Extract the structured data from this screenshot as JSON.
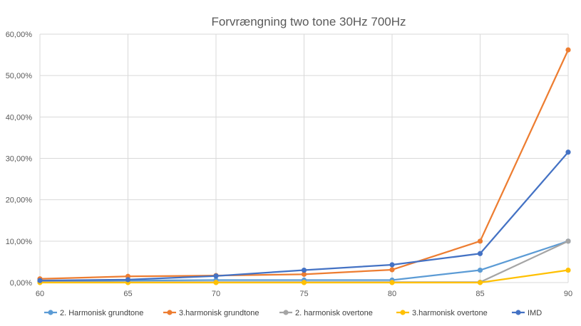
{
  "chart_data": {
    "type": "line",
    "title": "Forvrængning two tone 30Hz 700Hz",
    "xlabel": "",
    "ylabel": "",
    "x": [
      60,
      65,
      70,
      75,
      80,
      85,
      90
    ],
    "xlim": [
      60,
      90
    ],
    "ylim": [
      0,
      60
    ],
    "y_ticks": [
      "0,00%",
      "10,00%",
      "20,00%",
      "30,00%",
      "40,00%",
      "50,00%",
      "60,00%"
    ],
    "x_ticks": [
      "60",
      "65",
      "70",
      "75",
      "80",
      "85",
      "90"
    ],
    "grid": true,
    "legend_position": "bottom",
    "series": [
      {
        "name": "2. Harmonisk grundtone",
        "color": "#5B9BD5",
        "values": [
          0.3,
          0.5,
          0.6,
          0.6,
          0.6,
          3.0,
          10.0
        ]
      },
      {
        "name": "3.harmonisk grundtone",
        "color": "#ED7D31",
        "values": [
          0.9,
          1.5,
          1.7,
          2.0,
          3.1,
          10.0,
          56.2
        ]
      },
      {
        "name": "2. harmonisk  overtone",
        "color": "#A5A5A5",
        "values": [
          0.1,
          0.1,
          0.1,
          0.1,
          0.1,
          0.1,
          10.0
        ]
      },
      {
        "name": "3.harmonisk overtone",
        "color": "#FFC000",
        "values": [
          0.0,
          0.0,
          0.0,
          0.0,
          0.0,
          0.0,
          3.0
        ]
      },
      {
        "name": "IMD",
        "color": "#4472C4",
        "values": [
          0.5,
          0.7,
          1.6,
          3.0,
          4.3,
          7.0,
          31.5
        ]
      }
    ]
  }
}
